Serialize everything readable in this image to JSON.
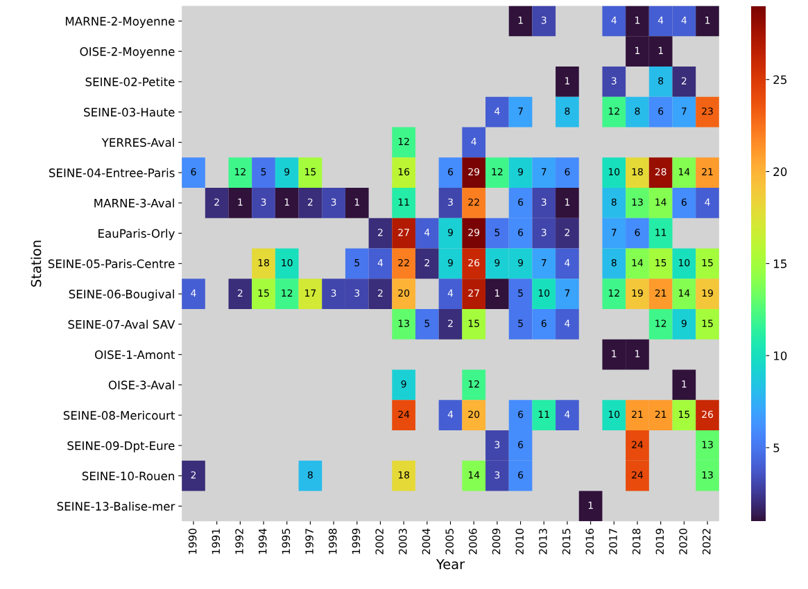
{
  "chart_data": {
    "type": "heatmap",
    "xlabel": "Year",
    "ylabel": "Station",
    "categories": [
      "1990",
      "1991",
      "1992",
      "1994",
      "1995",
      "1997",
      "1998",
      "1999",
      "2002",
      "2003",
      "2004",
      "2005",
      "2006",
      "2009",
      "2010",
      "2013",
      "2015",
      "2016",
      "2017",
      "2018",
      "2019",
      "2020",
      "2022"
    ],
    "y_categories": [
      "MARNE-2-Moyenne",
      "OISE-2-Moyenne",
      "SEINE-02-Petite",
      "SEINE-03-Haute",
      "YERRES-Aval",
      "SEINE-04-Entree-Paris",
      "MARNE-3-Aval",
      "EauParis-Orly",
      "SEINE-05-Paris-Centre",
      "SEINE-06-Bougival",
      "SEINE-07-Aval SAV",
      "OISE-1-Amont",
      "OISE-3-Aval",
      "SEINE-08-Mericourt",
      "SEINE-09-Dpt-Eure",
      "SEINE-10-Rouen",
      "SEINE-13-Balise-mer"
    ],
    "cells": [
      [
        null,
        null,
        null,
        null,
        null,
        null,
        null,
        null,
        null,
        null,
        null,
        null,
        null,
        null,
        1,
        3,
        null,
        null,
        4,
        1,
        4,
        4,
        1
      ],
      [
        null,
        null,
        null,
        null,
        null,
        null,
        null,
        null,
        null,
        null,
        null,
        null,
        null,
        null,
        null,
        null,
        null,
        null,
        null,
        1,
        1,
        null,
        null
      ],
      [
        null,
        null,
        null,
        null,
        null,
        null,
        null,
        null,
        null,
        null,
        null,
        null,
        null,
        null,
        null,
        null,
        1,
        null,
        3,
        null,
        8,
        2,
        null
      ],
      [
        null,
        null,
        null,
        null,
        null,
        null,
        null,
        null,
        null,
        null,
        null,
        null,
        null,
        4,
        7,
        null,
        8,
        null,
        12,
        8,
        6,
        7,
        23
      ],
      [
        null,
        null,
        null,
        null,
        null,
        null,
        null,
        null,
        null,
        12,
        null,
        null,
        4,
        null,
        null,
        null,
        null,
        null,
        null,
        null,
        null,
        null,
        null
      ],
      [
        6,
        null,
        12,
        5,
        9,
        15,
        null,
        null,
        null,
        16,
        null,
        6,
        29,
        12,
        9,
        7,
        6,
        null,
        10,
        18,
        28,
        14,
        21
      ],
      [
        null,
        2,
        1,
        3,
        1,
        2,
        3,
        1,
        null,
        11,
        null,
        3,
        22,
        null,
        6,
        3,
        1,
        null,
        8,
        13,
        14,
        6,
        4
      ],
      [
        null,
        null,
        null,
        null,
        null,
        null,
        null,
        null,
        2,
        27,
        4,
        9,
        29,
        5,
        6,
        3,
        2,
        null,
        7,
        6,
        11,
        null,
        null
      ],
      [
        null,
        null,
        null,
        18,
        10,
        null,
        null,
        5,
        4,
        22,
        2,
        9,
        26,
        9,
        9,
        7,
        4,
        null,
        8,
        14,
        15,
        10,
        15
      ],
      [
        4,
        null,
        2,
        15,
        12,
        17,
        3,
        3,
        2,
        20,
        null,
        4,
        27,
        1,
        5,
        10,
        7,
        null,
        12,
        19,
        21,
        14,
        19
      ],
      [
        null,
        null,
        null,
        null,
        null,
        null,
        null,
        null,
        null,
        13,
        5,
        2,
        15,
        null,
        5,
        6,
        4,
        null,
        null,
        null,
        12,
        9,
        15
      ],
      [
        null,
        null,
        null,
        null,
        null,
        null,
        null,
        null,
        null,
        null,
        null,
        null,
        null,
        null,
        null,
        null,
        null,
        null,
        1,
        1,
        null,
        null,
        null
      ],
      [
        null,
        null,
        null,
        null,
        null,
        null,
        null,
        null,
        null,
        9,
        null,
        null,
        12,
        null,
        null,
        null,
        null,
        null,
        null,
        null,
        null,
        1,
        null
      ],
      [
        null,
        null,
        null,
        null,
        null,
        null,
        null,
        null,
        null,
        24,
        null,
        4,
        20,
        null,
        6,
        11,
        4,
        null,
        10,
        21,
        21,
        15,
        26
      ],
      [
        null,
        null,
        null,
        null,
        null,
        null,
        null,
        null,
        null,
        null,
        null,
        null,
        null,
        3,
        6,
        null,
        null,
        null,
        null,
        24,
        null,
        null,
        13
      ],
      [
        2,
        null,
        null,
        null,
        null,
        8,
        null,
        null,
        null,
        18,
        null,
        null,
        14,
        3,
        6,
        null,
        null,
        null,
        null,
        24,
        null,
        null,
        13
      ],
      [
        null,
        null,
        null,
        null,
        null,
        null,
        null,
        null,
        null,
        null,
        null,
        null,
        null,
        null,
        null,
        null,
        null,
        1,
        null,
        null,
        null,
        null,
        null
      ]
    ],
    "clim": [
      1,
      29
    ],
    "cticks": [
      5,
      10,
      15,
      20,
      25
    ],
    "data_labels": true
  }
}
